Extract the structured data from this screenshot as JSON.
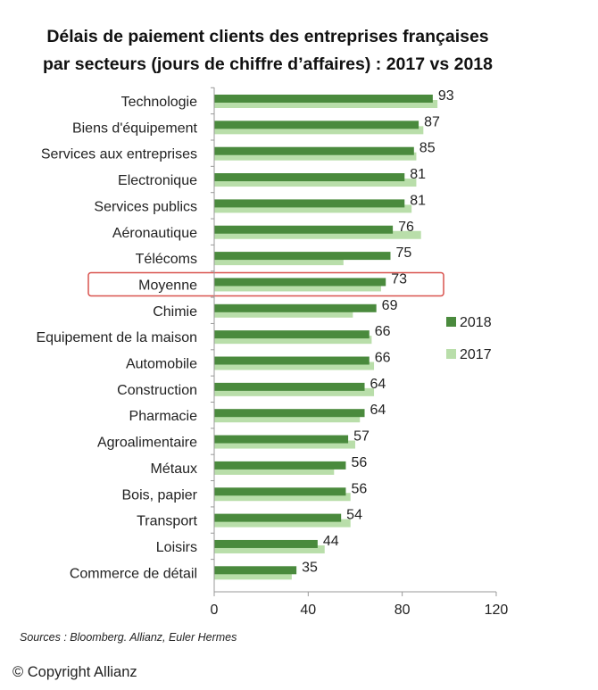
{
  "title_line1": "Délais de paiement clients des entreprises françaises",
  "title_line2": "par secteurs (jours de chiffre d’affaires) : 2017 vs 2018",
  "source": "Sources : Bloomberg. Allianz, Euler Hermes",
  "copyright": "© Copyright Allianz",
  "colors": {
    "s2018": "#4a8a3d",
    "s2017": "#b9deaa",
    "highlight": "#d9534f",
    "axis": "#999999"
  },
  "chart_data": {
    "type": "bar",
    "orientation": "horizontal",
    "title": "Délais de paiement clients des entreprises françaises par secteurs (jours de chiffre d’affaires) : 2017 vs 2018",
    "categories": [
      "Technologie",
      "Biens d'équipement",
      "Services aux entreprises",
      "Electronique",
      "Services publics",
      "Aéronautique",
      "Télécoms",
      "Moyenne",
      "Chimie",
      "Equipement de la maison",
      "Automobile",
      "Construction",
      "Pharmacie",
      "Agroalimentaire",
      "Métaux",
      "Bois, papier",
      "Transport",
      "Loisirs",
      "Commerce de détail"
    ],
    "series": [
      {
        "name": "2018",
        "values": [
          93,
          87,
          85,
          81,
          81,
          76,
          75,
          73,
          69,
          66,
          66,
          64,
          64,
          57,
          56,
          56,
          54,
          44,
          35
        ]
      },
      {
        "name": "2017",
        "values": [
          95,
          89,
          86,
          86,
          84,
          88,
          55,
          71,
          59,
          67,
          68,
          68,
          62,
          60,
          51,
          58,
          58,
          47,
          33
        ]
      }
    ],
    "data_labels_series": "2018",
    "xlim": [
      0,
      120
    ],
    "xticks": [
      0,
      40,
      80,
      120
    ],
    "highlight_category": "Moyenne",
    "legend_position": "right",
    "grid": false
  }
}
